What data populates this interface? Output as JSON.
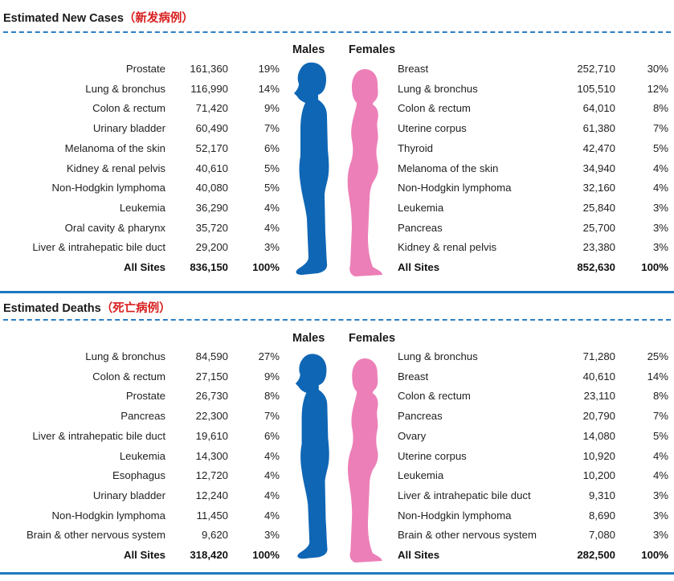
{
  "colors": {
    "male": "#0f66b5",
    "female": "#ec7fb8",
    "rule": "#1e78c2",
    "title_cn": "#d81e1e"
  },
  "new_cases": {
    "title": "Estimated New Cases",
    "title_cn": "（新发病例）",
    "males_label": "Males",
    "females_label": "Females",
    "males": [
      {
        "site": "Prostate",
        "count": "161,360",
        "pct": "19%"
      },
      {
        "site": "Lung & bronchus",
        "count": "116,990",
        "pct": "14%"
      },
      {
        "site": "Colon & rectum",
        "count": "71,420",
        "pct": "9%"
      },
      {
        "site": "Urinary bladder",
        "count": "60,490",
        "pct": "7%"
      },
      {
        "site": "Melanoma of the skin",
        "count": "52,170",
        "pct": "6%"
      },
      {
        "site": "Kidney & renal pelvis",
        "count": "40,610",
        "pct": "5%"
      },
      {
        "site": "Non-Hodgkin lymphoma",
        "count": "40,080",
        "pct": "5%"
      },
      {
        "site": "Leukemia",
        "count": "36,290",
        "pct": "4%"
      },
      {
        "site": "Oral cavity & pharynx",
        "count": "35,720",
        "pct": "4%"
      },
      {
        "site": "Liver & intrahepatic bile duct",
        "count": "29,200",
        "pct": "3%"
      },
      {
        "site": "All Sites",
        "count": "836,150",
        "pct": "100%"
      }
    ],
    "females": [
      {
        "site": "Breast",
        "count": "252,710",
        "pct": "30%"
      },
      {
        "site": "Lung & bronchus",
        "count": "105,510",
        "pct": "12%"
      },
      {
        "site": "Colon & rectum",
        "count": "64,010",
        "pct": "8%"
      },
      {
        "site": "Uterine corpus",
        "count": "61,380",
        "pct": "7%"
      },
      {
        "site": "Thyroid",
        "count": "42,470",
        "pct": "5%"
      },
      {
        "site": "Melanoma of the skin",
        "count": "34,940",
        "pct": "4%"
      },
      {
        "site": "Non-Hodgkin lymphoma",
        "count": "32,160",
        "pct": "4%"
      },
      {
        "site": "Leukemia",
        "count": "25,840",
        "pct": "3%"
      },
      {
        "site": "Pancreas",
        "count": "25,700",
        "pct": "3%"
      },
      {
        "site": "Kidney & renal pelvis",
        "count": "23,380",
        "pct": "3%"
      },
      {
        "site": "All Sites",
        "count": "852,630",
        "pct": "100%"
      }
    ]
  },
  "deaths": {
    "title": "Estimated Deaths",
    "title_cn": "（死亡病例）",
    "males_label": "Males",
    "females_label": "Females",
    "males": [
      {
        "site": "Lung & bronchus",
        "count": "84,590",
        "pct": "27%"
      },
      {
        "site": "Colon & rectum",
        "count": "27,150",
        "pct": "9%"
      },
      {
        "site": "Prostate",
        "count": "26,730",
        "pct": "8%"
      },
      {
        "site": "Pancreas",
        "count": "22,300",
        "pct": "7%"
      },
      {
        "site": "Liver & intrahepatic bile duct",
        "count": "19,610",
        "pct": "6%"
      },
      {
        "site": "Leukemia",
        "count": "14,300",
        "pct": "4%"
      },
      {
        "site": "Esophagus",
        "count": "12,720",
        "pct": "4%"
      },
      {
        "site": "Urinary bladder",
        "count": "12,240",
        "pct": "4%"
      },
      {
        "site": "Non-Hodgkin lymphoma",
        "count": "11,450",
        "pct": "4%"
      },
      {
        "site": "Brain & other nervous system",
        "count": "9,620",
        "pct": "3%"
      },
      {
        "site": "All Sites",
        "count": "318,420",
        "pct": "100%"
      }
    ],
    "females": [
      {
        "site": "Lung & bronchus",
        "count": "71,280",
        "pct": "25%"
      },
      {
        "site": "Breast",
        "count": "40,610",
        "pct": "14%"
      },
      {
        "site": "Colon & rectum",
        "count": "23,110",
        "pct": "8%"
      },
      {
        "site": "Pancreas",
        "count": "20,790",
        "pct": "7%"
      },
      {
        "site": "Ovary",
        "count": "14,080",
        "pct": "5%"
      },
      {
        "site": "Uterine corpus",
        "count": "10,920",
        "pct": "4%"
      },
      {
        "site": "Leukemia",
        "count": "10,200",
        "pct": "4%"
      },
      {
        "site": "Liver & intrahepatic bile duct",
        "count": "9,310",
        "pct": "3%"
      },
      {
        "site": "Non-Hodgkin lymphoma",
        "count": "8,690",
        "pct": "3%"
      },
      {
        "site": "Brain & other nervous system",
        "count": "7,080",
        "pct": "3%"
      },
      {
        "site": "All Sites",
        "count": "282,500",
        "pct": "100%"
      }
    ]
  }
}
